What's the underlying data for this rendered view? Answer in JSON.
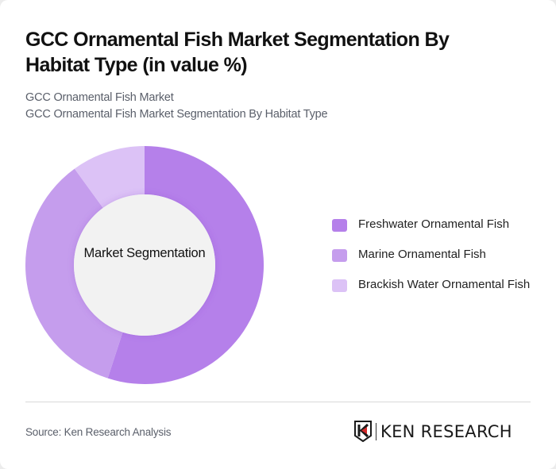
{
  "header": {
    "title": "GCC Ornamental Fish Market Segmentation By Habitat Type (in value %)",
    "subtitle_line1": "GCC Ornamental Fish Market",
    "subtitle_line2": "GCC Ornamental Fish Market Segmentation By Habitat Type"
  },
  "chart": {
    "center_label": "Market Segmentation",
    "legend": [
      {
        "label": "Freshwater Ornamental Fish",
        "color": "#b580ea"
      },
      {
        "label": "Marine Ornamental Fish",
        "color": "#c59ded"
      },
      {
        "label": "Brackish Water Ornamental Fish",
        "color": "#dcc2f6"
      }
    ]
  },
  "chart_data": {
    "type": "pie",
    "subtype": "donut",
    "title": "GCC Ornamental Fish Market Segmentation By Habitat Type (in value %)",
    "center_label": "Market Segmentation",
    "categories": [
      "Freshwater Ornamental Fish",
      "Marine Ornamental Fish",
      "Brackish Water Ornamental Fish"
    ],
    "values": [
      55,
      35,
      10
    ],
    "colors": [
      "#b580ea",
      "#c59ded",
      "#dcc2f6"
    ],
    "legend_position": "right",
    "start_angle_deg": 0,
    "direction": "clockwise"
  },
  "footer": {
    "source": "Source: Ken Research Analysis",
    "logo_text": "KEN RESEARCH"
  }
}
